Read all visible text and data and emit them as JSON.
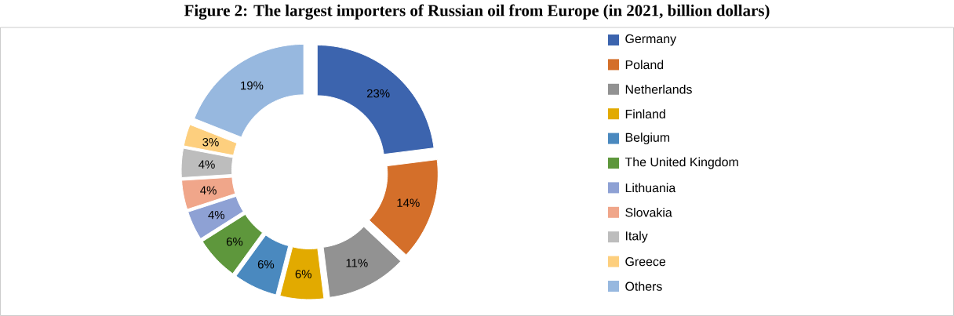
{
  "chart_data": {
    "type": "donut",
    "title": "Figure 2: The largest importers of Russian oil from Europe (in 2021, billion dollars)",
    "categories": [
      "Germany",
      "Poland",
      "Netherlands",
      "Finland",
      "Belgium",
      "The United Kingdom",
      "Lithuania",
      "Slovakia",
      "Italy",
      "Greece",
      "Others"
    ],
    "values": [
      23,
      14,
      11,
      6,
      6,
      6,
      4,
      4,
      4,
      3,
      19
    ],
    "colors": [
      "#3c64ae",
      "#d46f2a",
      "#929292",
      "#e2aa00",
      "#4a89bf",
      "#5e973c",
      "#8ea1d4",
      "#f0a68a",
      "#bdbdbd",
      "#fdcf7e",
      "#97b8df"
    ],
    "value_labels": [
      "23%",
      "14%",
      "11%",
      "6%",
      "6%",
      "6%",
      "4%",
      "4%",
      "4%",
      "3%",
      "19%"
    ],
    "legend": "right"
  }
}
